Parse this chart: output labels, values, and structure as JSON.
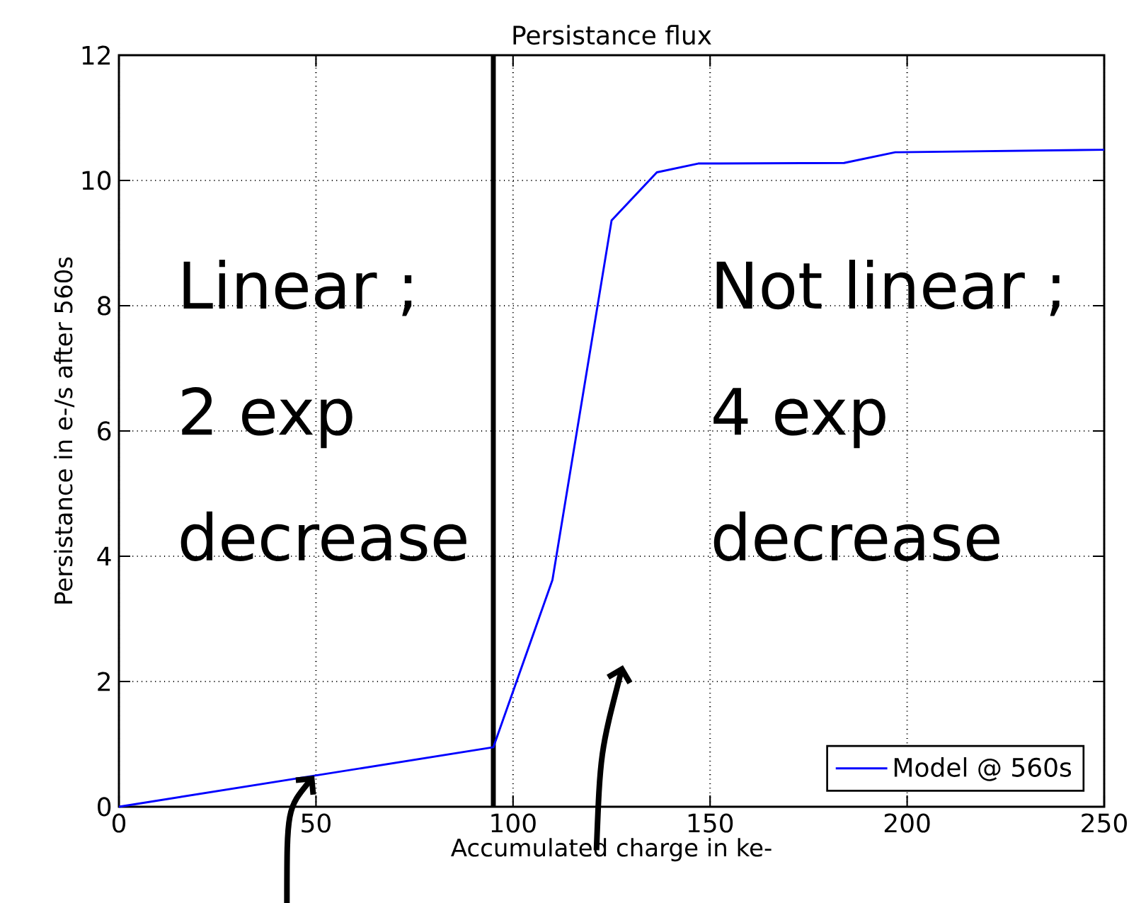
{
  "chart_data": {
    "type": "line",
    "title": "Persistance flux",
    "xlabel": "Accumulated charge in ke-",
    "ylabel": "Persistance in e-/s after 560s",
    "x": [
      0,
      95,
      110,
      125,
      136.5,
      147,
      184,
      197,
      250
    ],
    "series": [
      {
        "name": "Model @ 560s",
        "color": "#0000ff",
        "values": [
          0,
          0.95,
          3.62,
          9.36,
          10.13,
          10.27,
          10.28,
          10.45,
          10.49
        ]
      }
    ],
    "xlim": [
      0,
      250
    ],
    "ylim": [
      0,
      12
    ],
    "xticks": [
      0,
      50,
      100,
      150,
      200,
      250
    ],
    "yticks": [
      0,
      2,
      4,
      6,
      8,
      10,
      12
    ],
    "grid": true,
    "legend": "bottom right",
    "marker": "none",
    "line_style": "solid",
    "ref_lines": [
      {
        "axis": "x",
        "value": 95,
        "color": "#000000"
      }
    ],
    "annotations": [
      "Linear ;",
      "2 exp",
      "decrease",
      "Not linear ;",
      "4 exp",
      "decrease"
    ]
  }
}
